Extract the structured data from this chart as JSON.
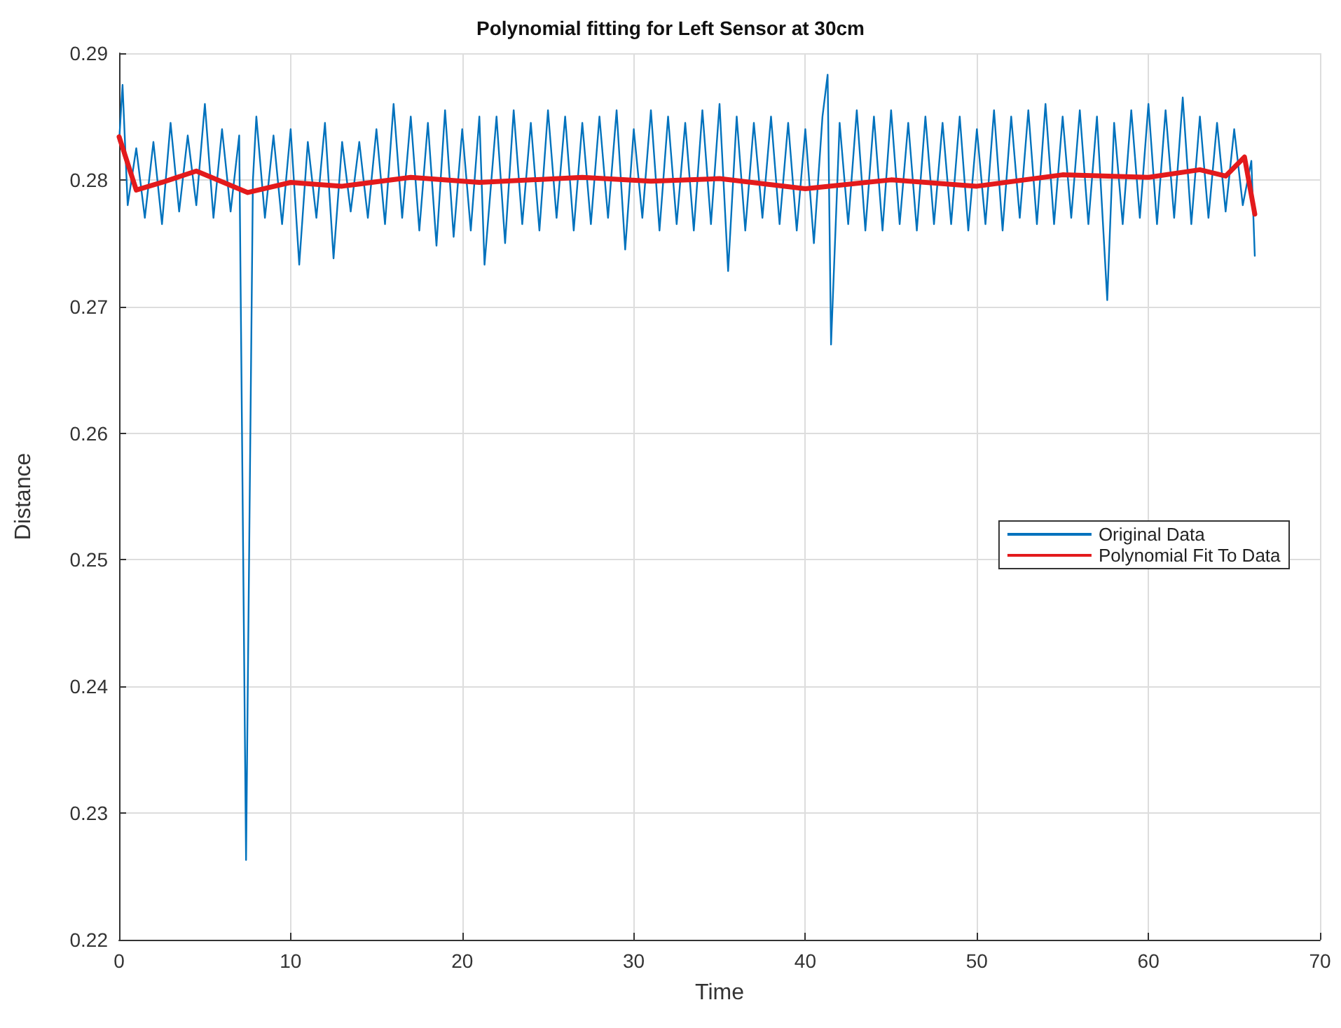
{
  "chart_data": {
    "type": "line",
    "title": "Polynomial fitting for Left Sensor at 30cm",
    "xlabel": "Time",
    "ylabel": "Distance",
    "xlim": [
      0,
      70
    ],
    "xticks": [
      0,
      10,
      20,
      30,
      40,
      50,
      60,
      70
    ],
    "ylim": [
      0.22,
      0.29
    ],
    "yticks": [
      0.22,
      0.23,
      0.24,
      0.25,
      0.26,
      0.27,
      0.28,
      0.29
    ],
    "grid": true,
    "legend": "right",
    "marker": "none",
    "series": [
      {
        "name": "Original Data",
        "color": "#0072bd",
        "x": [
          0,
          0.2,
          0.5,
          1,
          1.5,
          2,
          2.5,
          3,
          3.5,
          4,
          4.5,
          5,
          5.5,
          6,
          6.5,
          7,
          7.4,
          7.8,
          8,
          8.5,
          9,
          9.5,
          10,
          10.5,
          11,
          11.5,
          12,
          12.5,
          13,
          13.5,
          14,
          14.5,
          15,
          15.5,
          16,
          16.5,
          17,
          17.5,
          18,
          18.5,
          19,
          19.5,
          20,
          20.5,
          21,
          21.3,
          22,
          22.5,
          23,
          23.5,
          24,
          24.5,
          25,
          25.5,
          26,
          26.5,
          27,
          27.5,
          28,
          28.5,
          29,
          29.5,
          30,
          30.5,
          31,
          31.5,
          32,
          32.5,
          33,
          33.5,
          34,
          34.5,
          35,
          35.5,
          36,
          36.5,
          37,
          37.5,
          38,
          38.5,
          39,
          39.5,
          40,
          40.5,
          41,
          41.3,
          41.5,
          42,
          42.5,
          43,
          43.5,
          44,
          44.5,
          45,
          45.5,
          46,
          46.5,
          47,
          47.5,
          48,
          48.5,
          49,
          49.5,
          50,
          50.5,
          51,
          51.5,
          52,
          52.5,
          53,
          53.5,
          54,
          54.5,
          55,
          55.5,
          56,
          56.5,
          57,
          57.6,
          58,
          58.5,
          59,
          59.5,
          60,
          60.5,
          61,
          61.5,
          62,
          62.5,
          63,
          63.5,
          64,
          64.5,
          65,
          65.5,
          66,
          66.2
        ],
        "values": [
          0.283,
          0.2875,
          0.278,
          0.2825,
          0.277,
          0.283,
          0.2765,
          0.2845,
          0.2775,
          0.2835,
          0.278,
          0.286,
          0.277,
          0.284,
          0.2775,
          0.2835,
          0.2263,
          0.28,
          0.285,
          0.277,
          0.2835,
          0.2765,
          0.284,
          0.2733,
          0.283,
          0.277,
          0.2845,
          0.2738,
          0.283,
          0.2775,
          0.283,
          0.277,
          0.284,
          0.2765,
          0.286,
          0.277,
          0.285,
          0.276,
          0.2845,
          0.2748,
          0.2855,
          0.2755,
          0.284,
          0.276,
          0.285,
          0.2733,
          0.285,
          0.275,
          0.2855,
          0.2765,
          0.2845,
          0.276,
          0.2855,
          0.277,
          0.285,
          0.276,
          0.2845,
          0.2765,
          0.285,
          0.277,
          0.2855,
          0.2745,
          0.284,
          0.277,
          0.2855,
          0.276,
          0.285,
          0.2765,
          0.2845,
          0.276,
          0.2855,
          0.2765,
          0.286,
          0.2728,
          0.285,
          0.276,
          0.2845,
          0.277,
          0.285,
          0.2765,
          0.2845,
          0.276,
          0.284,
          0.275,
          0.285,
          0.2883,
          0.267,
          0.2845,
          0.2765,
          0.2855,
          0.276,
          0.285,
          0.276,
          0.2855,
          0.2765,
          0.2845,
          0.276,
          0.285,
          0.2765,
          0.2845,
          0.2765,
          0.285,
          0.276,
          0.284,
          0.2765,
          0.2855,
          0.276,
          0.285,
          0.277,
          0.2855,
          0.2765,
          0.286,
          0.2765,
          0.285,
          0.277,
          0.2855,
          0.2765,
          0.285,
          0.2705,
          0.2845,
          0.2765,
          0.2855,
          0.277,
          0.286,
          0.2765,
          0.2855,
          0.277,
          0.2865,
          0.2765,
          0.285,
          0.277,
          0.2845,
          0.2775,
          0.284,
          0.278,
          0.2815,
          0.274
        ]
      },
      {
        "name": "Polynomial Fit To Data",
        "color": "#e31a1c",
        "x": [
          0,
          1,
          2.5,
          4.5,
          7.5,
          10,
          13,
          17,
          21,
          27,
          31,
          35,
          40,
          45,
          50,
          55,
          60,
          63,
          64.5,
          65.6,
          66.2
        ],
        "values": [
          0.2834,
          0.2792,
          0.2798,
          0.2807,
          0.279,
          0.2798,
          0.2795,
          0.2802,
          0.2798,
          0.2802,
          0.2799,
          0.2801,
          0.2793,
          0.28,
          0.2795,
          0.2804,
          0.2802,
          0.2808,
          0.2803,
          0.2818,
          0.2773
        ]
      }
    ]
  }
}
